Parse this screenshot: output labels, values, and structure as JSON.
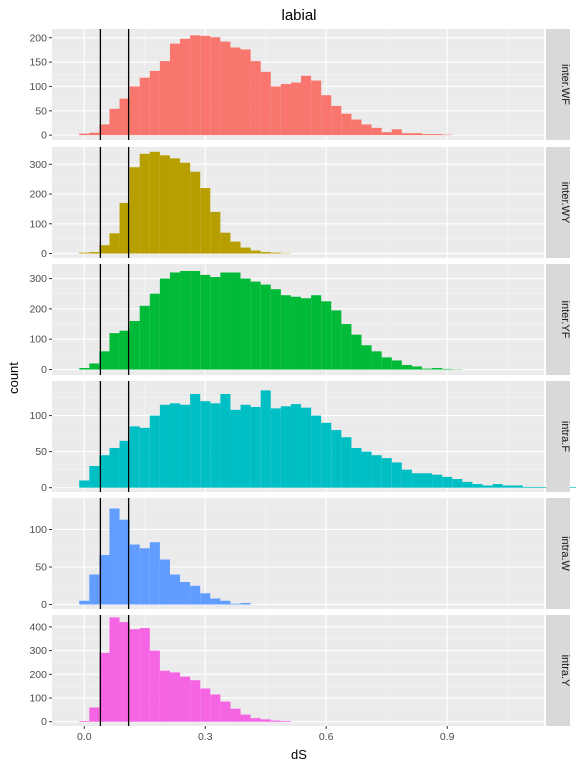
{
  "chart_data": {
    "type": "bar",
    "title": "labial",
    "xlabel": "dS",
    "ylabel": "count",
    "xlim": [
      -0.08,
      1.14
    ],
    "x_ticks": [
      "0.0",
      "0.3",
      "0.6",
      "0.9"
    ],
    "x_tick_values": [
      0.0,
      0.3,
      0.6,
      0.9
    ],
    "x_minor_values": [
      0.15,
      0.45,
      0.75,
      1.05
    ],
    "bin_start": -0.0125,
    "bin_width": 0.025,
    "vlines": [
      0.04,
      0.11
    ],
    "grid": true,
    "panel_background": "#ebebeb",
    "strip_background": "#d9d9d9",
    "facets": [
      {
        "label": "inter.WF",
        "color": "#F8766D",
        "ylim": [
          -10,
          218
        ],
        "y_ticks": [
          0,
          50,
          100,
          150,
          200
        ],
        "counts": [
          3,
          5,
          22,
          54,
          75,
          100,
          118,
          132,
          152,
          188,
          198,
          205,
          204,
          201,
          192,
          180,
          176,
          152,
          130,
          100,
          105,
          108,
          122,
          112,
          82,
          60,
          44,
          32,
          22,
          15,
          6,
          12,
          4,
          4,
          2,
          2,
          1
        ]
      },
      {
        "label": "inter.WY",
        "color": "#B79F00",
        "ylim": [
          -15,
          358
        ],
        "y_ticks": [
          0,
          100,
          200,
          300
        ],
        "counts": [
          3,
          5,
          28,
          68,
          170,
          290,
          335,
          342,
          330,
          320,
          305,
          275,
          220,
          140,
          70,
          40,
          20,
          10,
          5,
          3,
          1
        ]
      },
      {
        "label": "inter.YF",
        "color": "#00BA38",
        "ylim": [
          -18,
          348
        ],
        "y_ticks": [
          0,
          100,
          200,
          300
        ],
        "counts": [
          5,
          20,
          60,
          120,
          128,
          160,
          210,
          250,
          300,
          320,
          325,
          325,
          312,
          305,
          320,
          320,
          300,
          290,
          280,
          265,
          245,
          240,
          235,
          245,
          225,
          195,
          150,
          115,
          80,
          60,
          40,
          30,
          15,
          10,
          3,
          5,
          2,
          1
        ]
      },
      {
        "label": "intra.F",
        "color": "#00BFC4",
        "ylim": [
          -6,
          148
        ],
        "y_ticks": [
          0,
          50,
          100
        ],
        "counts": [
          10,
          30,
          45,
          55,
          65,
          85,
          83,
          100,
          115,
          117,
          115,
          130,
          120,
          117,
          130,
          108,
          115,
          112,
          135,
          110,
          113,
          116,
          111,
          100,
          90,
          80,
          70,
          55,
          50,
          45,
          41,
          35,
          25,
          20,
          20,
          18,
          15,
          12,
          8,
          5,
          3,
          5,
          3,
          3,
          1,
          1,
          1,
          1,
          1,
          1
        ]
      },
      {
        "label": "intra.W",
        "color": "#619CFF",
        "ylim": [
          -6,
          142
        ],
        "y_ticks": [
          0,
          50,
          100
        ],
        "counts": [
          5,
          40,
          66,
          128,
          113,
          80,
          75,
          83,
          60,
          40,
          30,
          25,
          15,
          8,
          5,
          1,
          2
        ]
      },
      {
        "label": "intra.Y",
        "color": "#F564E3",
        "ylim": [
          -18,
          450
        ],
        "y_ticks": [
          0,
          100,
          200,
          300,
          400
        ],
        "counts": [
          3,
          60,
          290,
          440,
          420,
          390,
          395,
          300,
          215,
          208,
          190,
          175,
          140,
          115,
          85,
          55,
          30,
          15,
          10,
          5,
          3
        ]
      }
    ]
  }
}
